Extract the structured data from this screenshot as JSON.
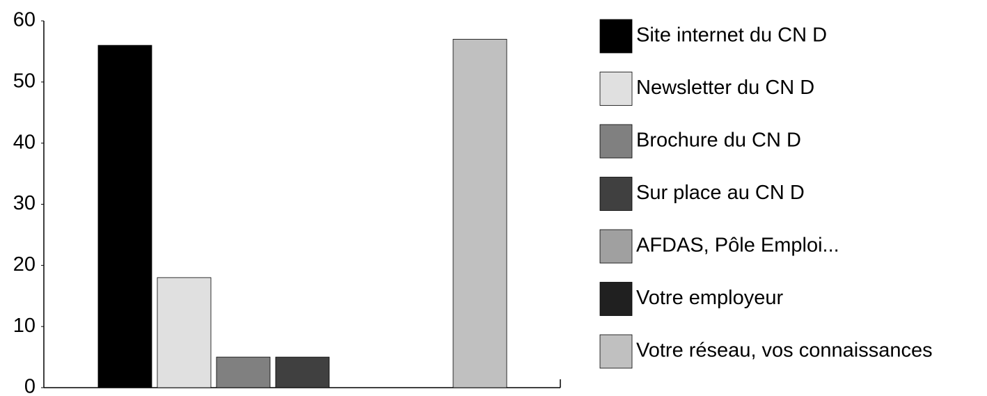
{
  "chart_data": {
    "type": "bar",
    "series": [
      {
        "name": "Site internet du CN D",
        "color": "#000000",
        "values": [
          56
        ]
      },
      {
        "name": "Newsletter du  CN D",
        "color": "#e0e0e0",
        "values": [
          18
        ]
      },
      {
        "name": "Brochure du CN D",
        "color": "#808080",
        "values": [
          5
        ]
      },
      {
        "name": "Sur place au CN D",
        "color": "#404040",
        "values": [
          5
        ]
      },
      {
        "name": "AFDAS, Pôle Emploi...",
        "color": "#a0a0a0",
        "values": [
          0
        ]
      },
      {
        "name": "Votre employeur",
        "color": "#202020",
        "values": [
          0
        ]
      },
      {
        "name": "Votre réseau, vos connaissances",
        "color": "#c0c0c0",
        "values": [
          57
        ]
      }
    ],
    "ylim": [
      0,
      60
    ],
    "yticks": [
      0,
      10,
      20,
      30,
      40,
      50,
      60
    ],
    "grid": false,
    "legend": "right"
  }
}
